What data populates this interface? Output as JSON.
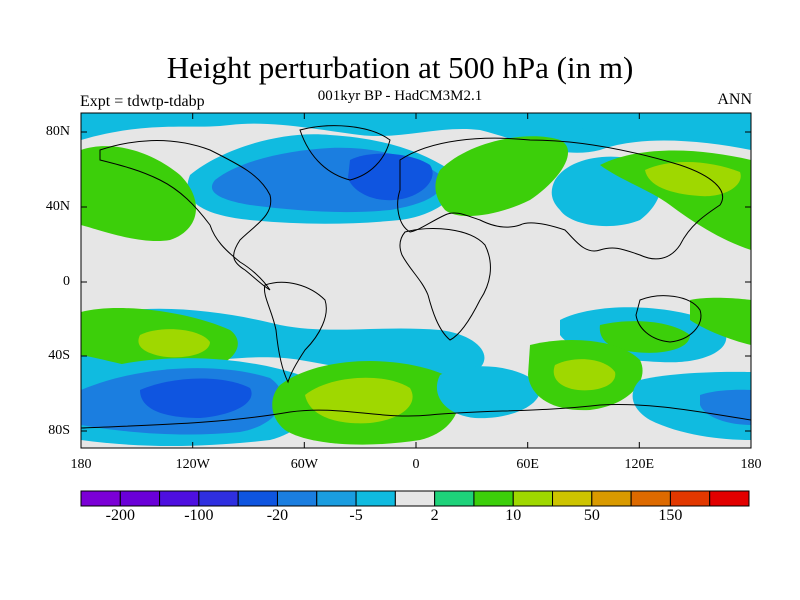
{
  "title": "Height perturbation at 500 hPa (in m)",
  "subtitle": "001kyr BP - HadCM3M2.1",
  "left_label": "Expt = tdwtp-tdabp",
  "right_label": "ANN",
  "lat_labels": [
    "80N",
    "40N",
    "0",
    "40S",
    "80S"
  ],
  "lon_labels": [
    "180",
    "120W",
    "60W",
    "0",
    "60E",
    "120E",
    "180"
  ],
  "colorbar": {
    "colors": [
      "#7b00d6",
      "#6a00d8",
      "#4e0fe0",
      "#2f2fe0",
      "#0f55e0",
      "#1b7ee0",
      "#1a9de0",
      "#10bbe0",
      "#e6e6e6",
      "#1ed27a",
      "#3ccf0a",
      "#9fd800",
      "#cdc400",
      "#d99a00",
      "#dd6a00",
      "#e23800",
      "#e20000"
    ],
    "labels": [
      "-200",
      "-100",
      "-20",
      "-5",
      "2",
      "10",
      "50",
      "150"
    ]
  }
}
